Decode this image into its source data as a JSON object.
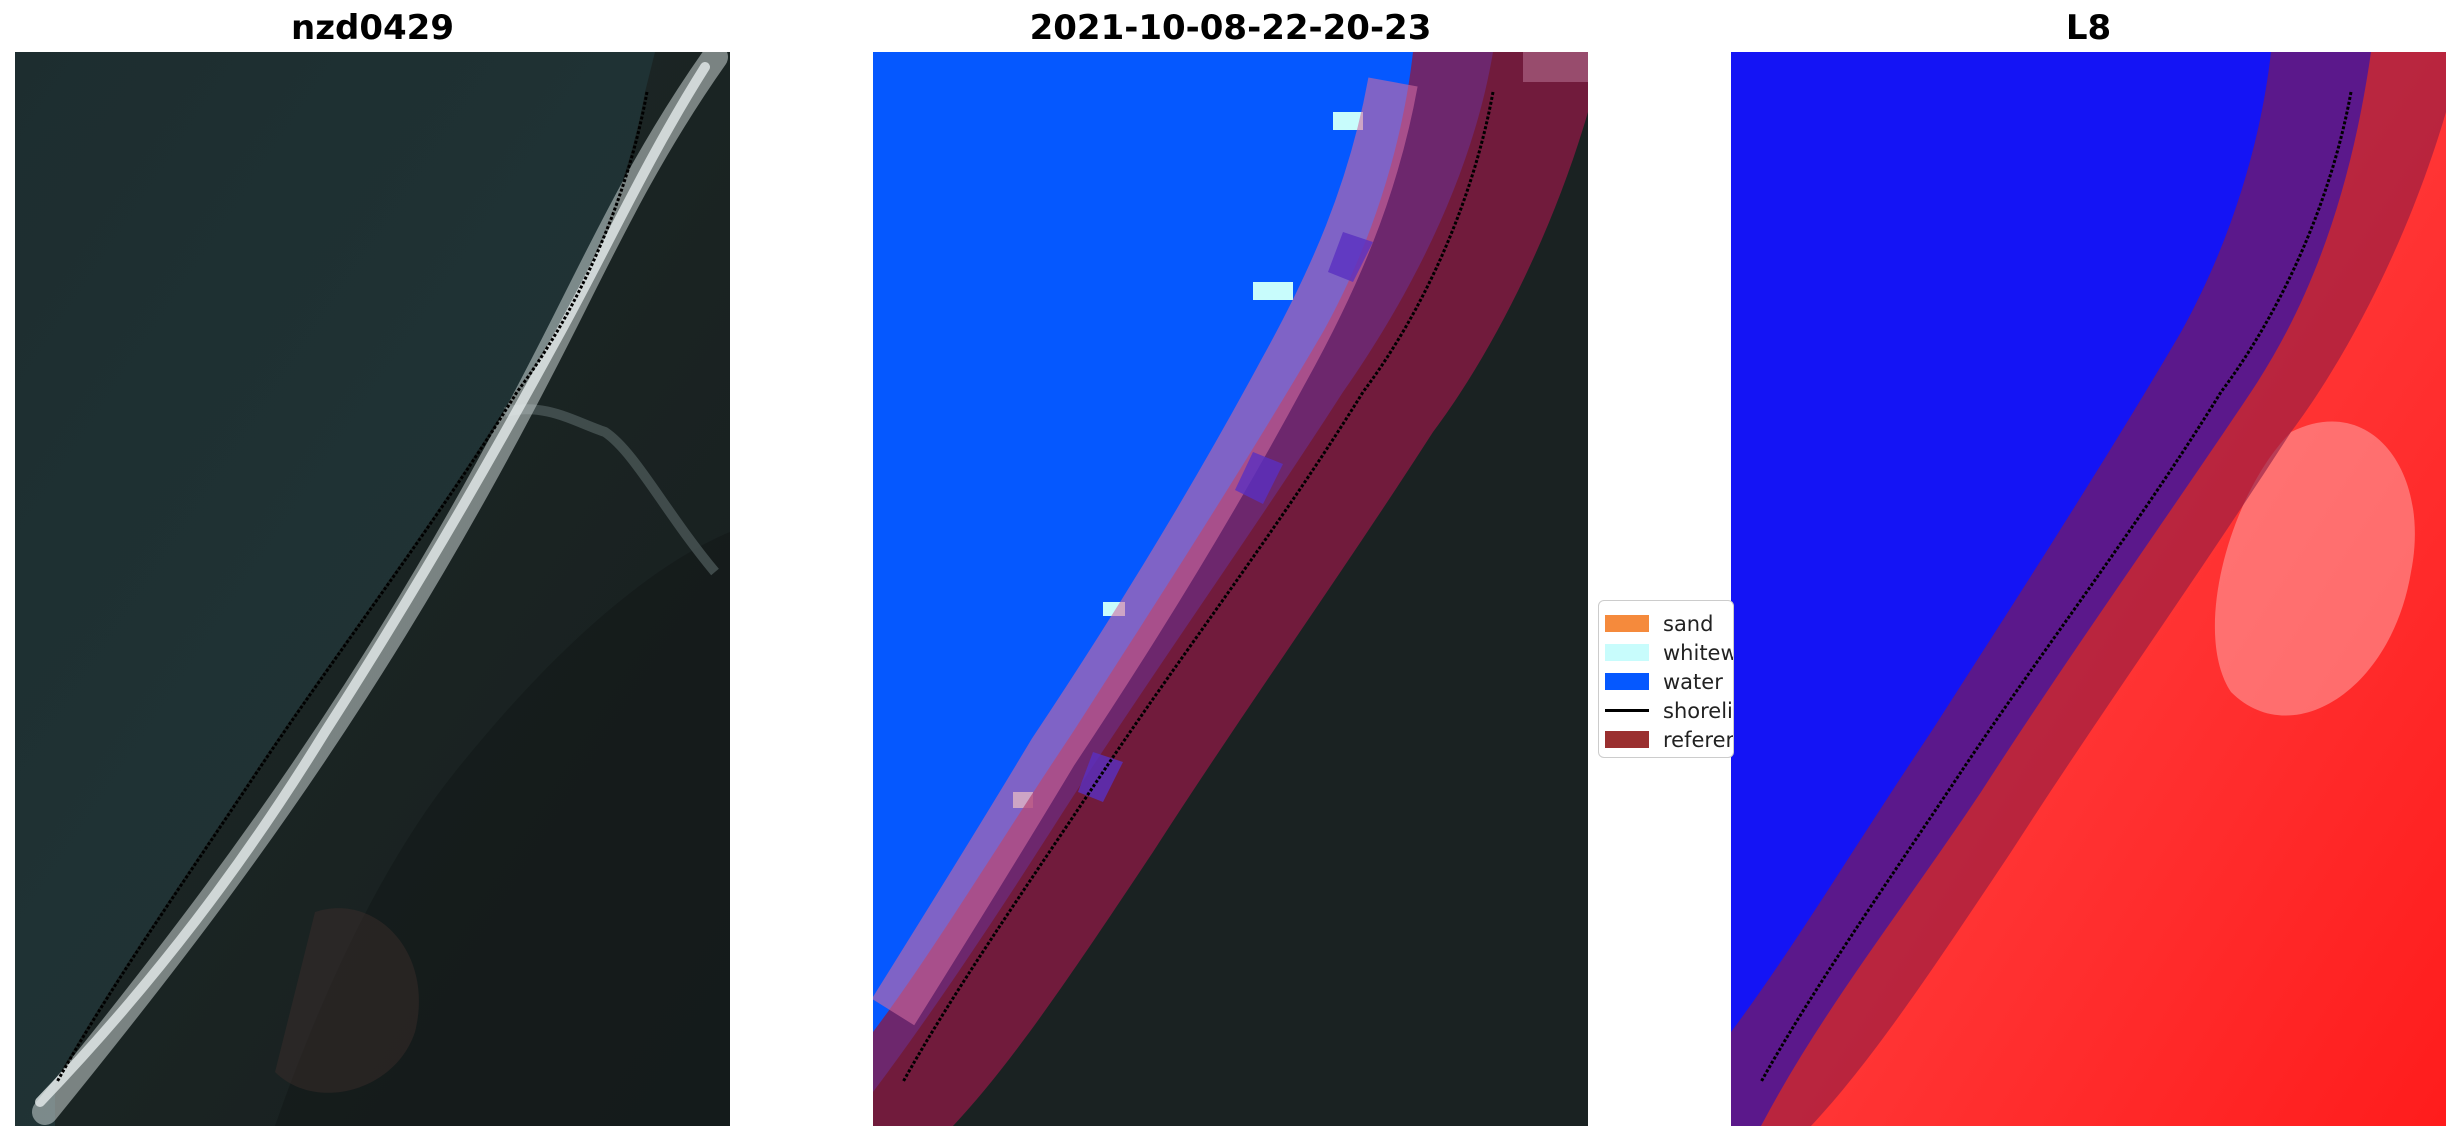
{
  "panels": [
    {
      "title": "nzd0429"
    },
    {
      "title": "2021-10-08-22-20-23"
    },
    {
      "title": "L8"
    }
  ],
  "legend": {
    "items": [
      {
        "label": "sand",
        "color": "#f58a3c"
      },
      {
        "label": "whitewater",
        "color": "#c8fcfc"
      },
      {
        "label": "water",
        "color": "#0558ff"
      },
      {
        "label": "shoreline",
        "color": "#000000"
      },
      {
        "label": "reference shoreline buffer",
        "color": "#9a2f2f"
      }
    ]
  },
  "colors": {
    "ocean": "#1c2c2e",
    "land": "#1a2222",
    "water_class": "#0558ff",
    "whitewater_class": "#c8fcfc",
    "buffer": "#8a1a44",
    "index_water": "#1414f5",
    "index_land": "#ff2424"
  }
}
